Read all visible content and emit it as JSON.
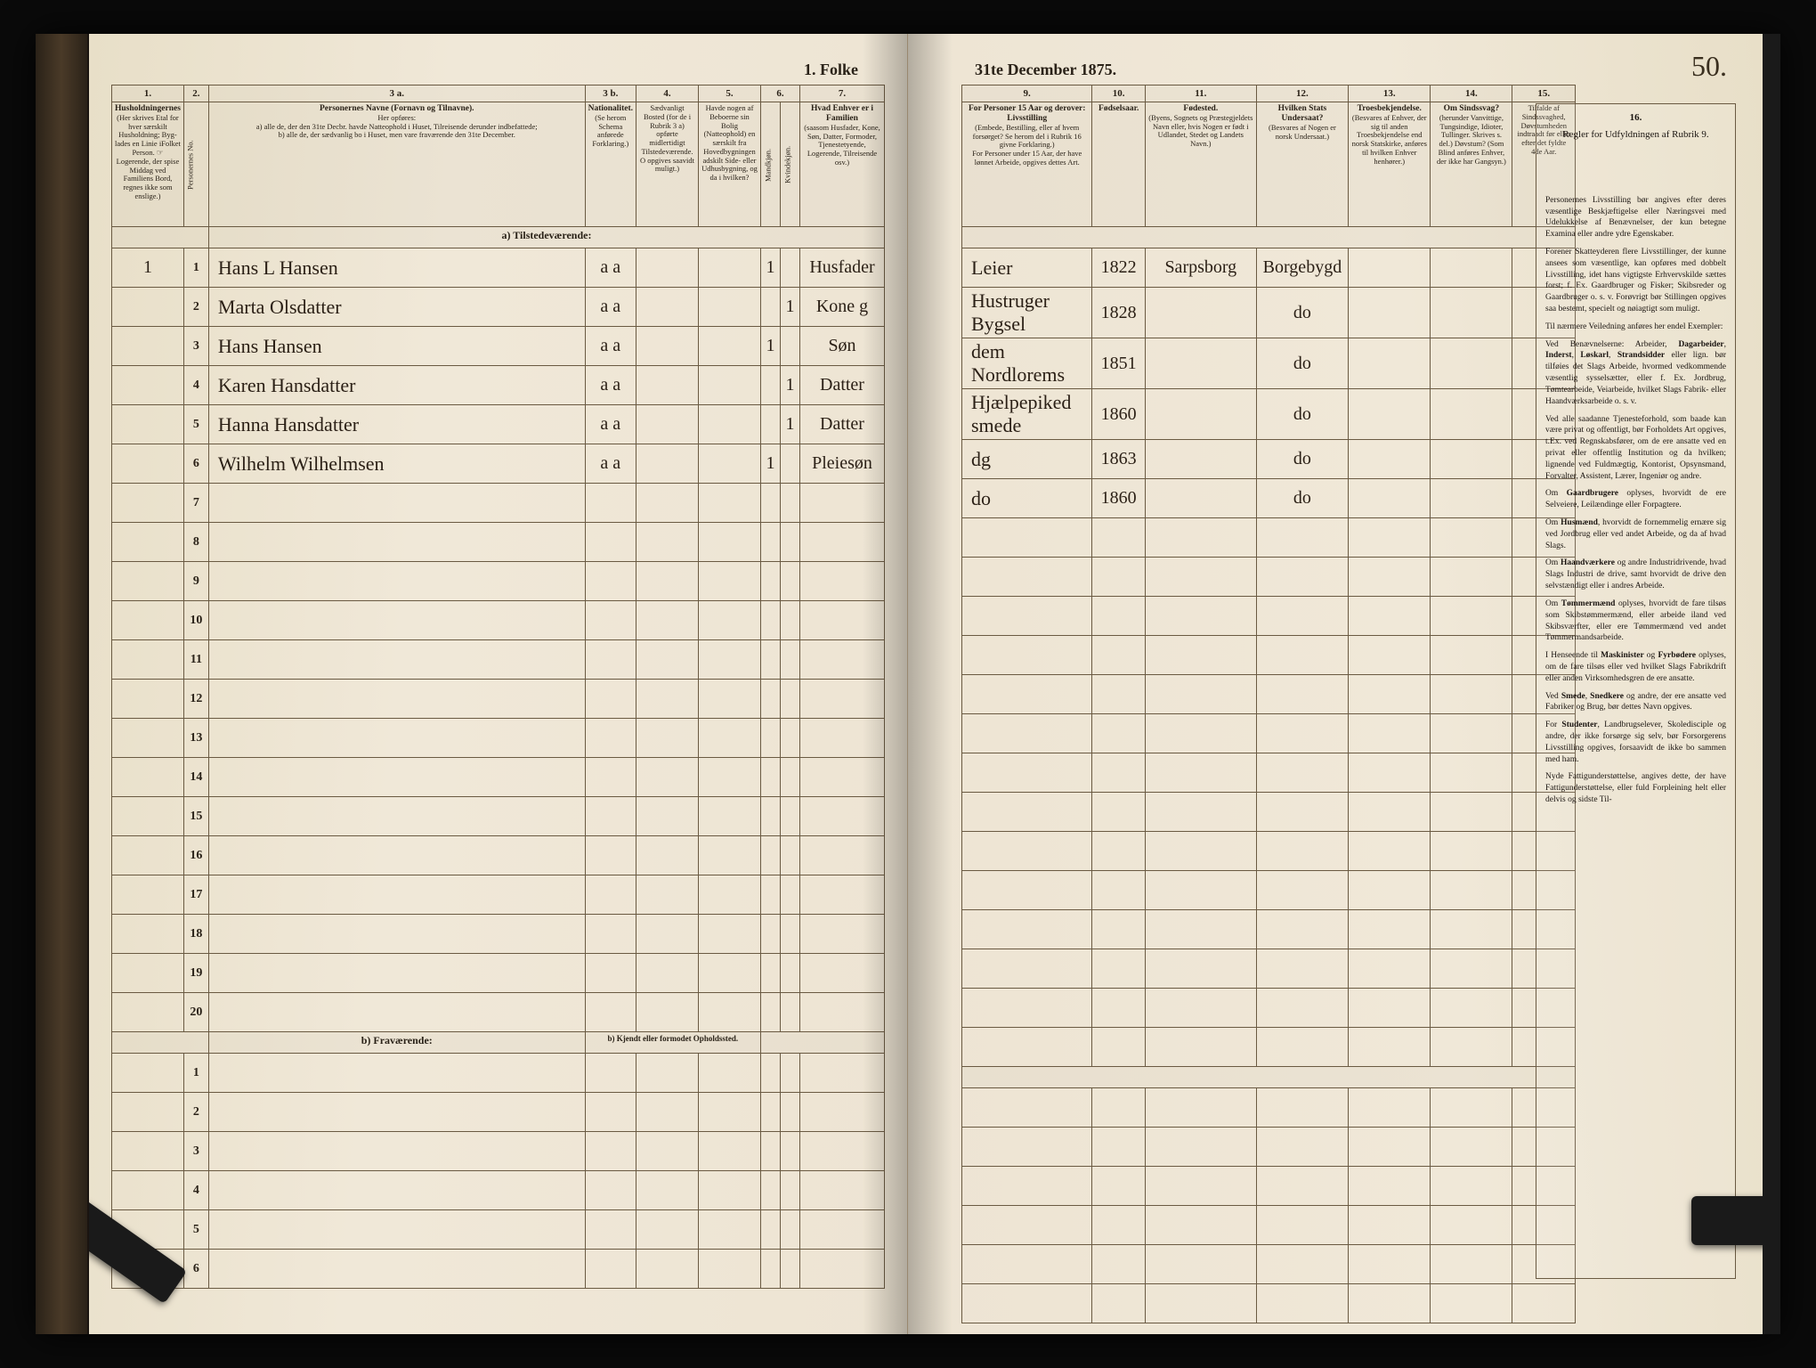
{
  "document": {
    "title_left": "1.  Folke",
    "title_right": "31te December 1875.",
    "page_number": "50.",
    "background_color": "#ede4d3",
    "ink_color": "#2a1f15",
    "rule_color": "#6a5a42"
  },
  "left": {
    "col_nums": [
      "1.",
      "2.",
      "3 a.",
      "3 b.",
      "4.",
      "5.",
      "6.",
      "7."
    ],
    "headers": {
      "c1": "Husholdningernes",
      "c1_sub": "(Her skrives Etal for hver særskilt Husholdning; Byg- lades en Linie iFolket Person. ☞ Logerende, der spise Middag ved Familiens Bord, regnes ikke som enslige.)",
      "c2": "Personernes No.",
      "c3a": "Personernes Navne (Fornavn og Tilnavne).",
      "c3a_sub_a": "a) alle de, der den 31te Decbr. havde Natteophold i Huset, Tilreisende derunder indbefattede;",
      "c3a_sub_b": "b) alle de, der sædvanlig bo i Huset, men vare fraværende den 31te December.",
      "c3b": "Nationalitet.",
      "c3b_sub": "(Se herom Schema anførede Forklaring.)",
      "c4": "Sædvanligt Bosted (for de i Rubrik 3 a) opførte midlertidigt Tilstedeværende. O opgives saavidt muligt.)",
      "c5": "Havde nogen af Beboerne sin Bolig (Natteophold) en særskilt fra Hovedbygningen adskilt Side- eller Udhusbygning, og da i hvilken?",
      "c6": "Kjøn.",
      "c6_m": "Mandkjøn.",
      "c6_k": "Kvindekjøn.",
      "c7": "Hvad Enhver er i Familien",
      "c7_sub": "(saasom Husfader, Kone, Søn, Datter, Formoder, Tjenestetyende, Logerende, Tilreisende osv.)"
    },
    "section_a": "a) Tilstedeværende:",
    "section_b": "b) Fraværende:",
    "section_b2": "b) Kjendt eller formodet Opholdssted.",
    "rows": [
      {
        "num": "1",
        "pno": "1",
        "name": "Hans L Hansen",
        "nat": "a a",
        "c5": "1",
        "fam": "Husfader"
      },
      {
        "num": "",
        "pno": "2",
        "name": "Marta Olsdatter",
        "nat": "a a",
        "c5": "1",
        "fam": "Kone g"
      },
      {
        "num": "",
        "pno": "3",
        "name": "Hans Hansen",
        "nat": "a a",
        "c5": "1",
        "fam": "Søn"
      },
      {
        "num": "",
        "pno": "4",
        "name": "Karen Hansdatter",
        "nat": "a a",
        "c5": "1",
        "fam": "Datter"
      },
      {
        "num": "",
        "pno": "5",
        "name": "Hanna Hansdatter",
        "nat": "a a",
        "c5": "1",
        "fam": "Datter"
      },
      {
        "num": "",
        "pno": "6",
        "name": "Wilhelm Wilhelmsen",
        "nat": "a a",
        "c5": "1",
        "fam": "Pleiesøn"
      }
    ],
    "empty_rows_a": [
      "7",
      "8",
      "9",
      "10",
      "11",
      "12",
      "13",
      "14",
      "15",
      "16",
      "17",
      "18",
      "19",
      "20"
    ],
    "empty_rows_b": [
      "1",
      "2",
      "3",
      "4",
      "5",
      "6"
    ]
  },
  "right": {
    "col_nums": [
      "9.",
      "10.",
      "11.",
      "12.",
      "13.",
      "14.",
      "15."
    ],
    "headers": {
      "c9a": "For Personer 15 Aar og derover: Livsstilling",
      "c9a_sub": "(Embede, Bestilling, eller af hvem forsørget? Se herom del i Rubrik 16 givne Forklaring.)",
      "c9b": "For Personer under 15 Aar, der have lønnet Arbeide, opgives dettes Art.",
      "c10": "Fødselsaar.",
      "c11": "Fødested.",
      "c11_sub": "(Byens, Sognets og Præstegjeldets Navn eller, hvis Nogen er født i Udlandet, Stedet og Landets Navn.)",
      "c12": "Hvilken Stats Undersaat?",
      "c12_sub": "(Besvares af Nogen er norsk Undersaat.)",
      "c13": "Troesbekjendelse.",
      "c13_sub": "(Besvares af Enhver, der sig til anden Troesbekjendelse end norsk Statskirke, anføres til hvilken Enhver henhører.)",
      "c14": "Om Sindssvag?",
      "c14_sub": "(herunder Vanvittige, Tungsindige, Idioter, Tullinger. Skrives s. del.) Døvstum? (Som Blind anføres Enhver, der ikke har Gangsyn.)",
      "c15": "Tilfalde af Sindssvaghed, Døvstumheden indtraadt før eller efter det fyldte 4de Aar."
    },
    "rows": [
      {
        "c9": "Leier",
        "c10": "1822",
        "c11": "Sarpsborg",
        "c12": "Borgebygd"
      },
      {
        "c9": "Hustruger Bygsel",
        "c10": "1828",
        "c11": "",
        "c12": "do"
      },
      {
        "c9": "dem Nordlorems",
        "c10": "1851",
        "c11": "",
        "c12": "do"
      },
      {
        "c9": "Hjælpepiked smede",
        "c10": "1860",
        "c11": "",
        "c12": "do"
      },
      {
        "c9": "dg",
        "c10": "1863",
        "c11": "",
        "c12": "do"
      },
      {
        "c9": "do",
        "c10": "1860",
        "c11": "",
        "c12": "do"
      }
    ],
    "rules_col_num": "16.",
    "rules_title": "Regler for Udfyldningen af Rubrik 9.",
    "rules_paragraphs": [
      "Personernes Livsstilling bør angives efter deres væsentlige Beskjæftigelse eller Næringsvei med Udelukkelse af Benævnelser, der kun betegne Examina eller andre ydre Egenskaber.",
      "Forener Skatteyderen flere Livsstillinger, der kunne ansees som væsentlige, kan opføres med dobbelt Livsstilling, idet hans vigtigste Erhvervskilde sættes forst; f. Ex. Gaardbruger og Fisker; Skibsreder og Gaardbruger o. s. v. Forøvrigt bør Stillingen opgives saa bestemt, specielt og nøiagtigt som muligt.",
      "Til nærmere Veiledning anføres her endel Exempler:",
      "Ved Benævnelserne: Arbeider, <b>Dagarbeider</b>, <b>Inderst</b>, <b>Løskarl</b>, <b>Strandsidder</b> eller lign. bør tilføies det Slags Arbeide, hvormed vedkommende væsentlig sysselsætter, eller f. Ex. Jordbrug, Tømtearbeide, Veiarbeide, hvilket Slags Fabrik- eller Haandværksarbeide o. s. v.",
      "Ved alle saadanne Tjenesteforhold, som baade kan være privat og offentligt, bør Forholdets Art opgives, t.Ex. ved Regnskabsfører, om de ere ansatte ved en privat eller offentlig Institution og da hvilken; lignende ved Fuldmægtig, Kontorist, Opsynsmand, Forvalter, Assistent, Lærer, Ingeniør og andre.",
      "Om <b>Gaardbrugere</b> oplyses, hvorvidt de ere Selveiere, Leilændinge eller Forpagtere.",
      "Om <b>Husmænd</b>, hvorvidt de fornemmelig ernære sig ved Jordbrug eller ved andet Arbeide, og da af hvad Slags.",
      "Om <b>Haandværkere</b> og andre Industridrivende, hvad Slags Industri de drive, samt hvorvidt de drive den selvstændigt eller i andres Arbeide.",
      "Om <b>Tømmermænd</b> oplyses, hvorvidt de fare tilsøs som Skibstømmermænd, eller arbeide iland ved Skibsværfter, eller ere Tømmermænd ved andet Tømmermandsarbeide.",
      "I Henseende til <b>Maskinister</b> og <b>Fyrbødere</b> oplyses, om de fare tilsøs eller ved hvilket Slags Fabrikdrift eller anden Virksomhedsgren de ere ansatte.",
      "Ved <b>Smede</b>, <b>Snedkere</b> og andre, der ere ansatte ved Fabriker og Brug, bør dettes Navn opgives.",
      "For <b>Studenter</b>, Landbrugselever, Skoledisciple og andre, der ikke forsørge sig selv, bør Forsorgerens Livsstilling opgives, forsaavidt de ikke bo sammen med ham.",
      "Nyde Fattigunderstøttelse, angives dette, der have Fattigunderstøttelse, eller fuld Forpleining helt eller delvis og sidste Til-"
    ]
  }
}
